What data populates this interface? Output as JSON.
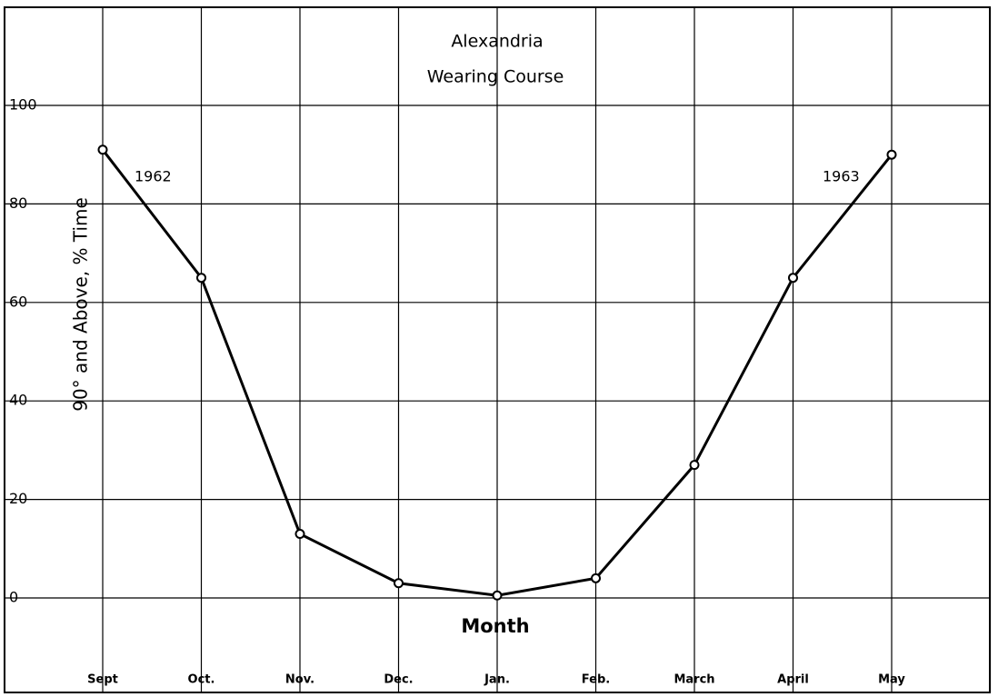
{
  "chart_data": {
    "type": "line",
    "title": "Alexandria",
    "subtitle": "Wearing Course",
    "x_label": "Month",
    "y_label": "90° and Above, % Time",
    "categories": [
      "Sept",
      "Oct.",
      "Nov.",
      "Dec.",
      "Jan.",
      "Feb.",
      "March",
      "April",
      "May"
    ],
    "series": [
      {
        "color": "#000000",
        "values": [
          91,
          65,
          13,
          3,
          0.5,
          4,
          27,
          65,
          90
        ]
      }
    ],
    "annotations": [
      "1962",
      "1963"
    ],
    "ylim": [
      0,
      100
    ],
    "yticks": [
      0,
      20,
      40,
      60,
      80,
      100
    ],
    "grid": true
  }
}
